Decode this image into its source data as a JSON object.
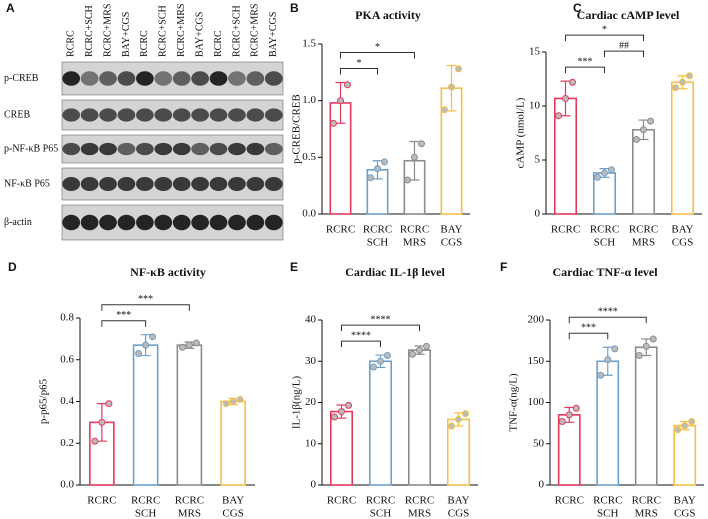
{
  "chart_data": [
    {
      "type": "blot",
      "panel": "A",
      "lanes": [
        "RCRC",
        "RCRC+SCH",
        "RCRC+MRS",
        "BAY+CGS",
        "RCRC",
        "RCRC+SCH",
        "RCRC+MRS",
        "BAY+CGS",
        "RCRC",
        "RCRC+SCH",
        "RCRC+MRS",
        "BAY+CGS"
      ],
      "rows": [
        "p-CREB",
        "CREB",
        "p-NF-κB P65",
        "NF-κB P65",
        "β-actin"
      ]
    },
    {
      "type": "bar",
      "panel": "B",
      "title": "PKA activity",
      "ylabel": "p-CREB/CREB",
      "categories": [
        [
          "RCRC"
        ],
        [
          "RCRC",
          "SCH"
        ],
        [
          "RCRC",
          "MRS"
        ],
        [
          "BAY",
          "CGS"
        ]
      ],
      "values": [
        0.98,
        0.39,
        0.47,
        1.11
      ],
      "errors": [
        0.18,
        0.08,
        0.17,
        0.2
      ],
      "points": [
        [
          0.8,
          1.0,
          1.14
        ],
        [
          0.32,
          0.4,
          0.46
        ],
        [
          0.3,
          0.5,
          0.62
        ],
        [
          0.92,
          1.12,
          1.28
        ]
      ],
      "colors": [
        "#e6395e",
        "#6f9fc8",
        "#8c8c8c",
        "#f5c04a"
      ],
      "ylim": [
        0,
        1.5
      ],
      "yticks": [
        {
          "value": 0,
          "label": "0.0"
        },
        0.5,
        {
          "value": 1,
          "label": "1.0"
        },
        1.5
      ],
      "significance": [
        {
          "from": 0,
          "to": 1,
          "label": "*"
        },
        {
          "from": 0,
          "to": 2,
          "label": "*"
        }
      ]
    },
    {
      "type": "bar",
      "panel": "C",
      "title": "Cardiac cAMP level",
      "ylabel": "cAMP (nmol/L)",
      "categories": [
        [
          "RCRC"
        ],
        [
          "RCRC",
          "SCH"
        ],
        [
          "RCRC",
          "MRS"
        ],
        [
          "BAY",
          "CGS"
        ]
      ],
      "values": [
        10.7,
        3.8,
        7.8,
        12.2
      ],
      "errors": [
        1.6,
        0.4,
        0.9,
        0.6
      ],
      "points": [
        [
          9.1,
          10.7,
          12.2
        ],
        [
          3.4,
          3.8,
          4.1
        ],
        [
          6.9,
          7.8,
          8.6
        ],
        [
          11.7,
          12.2,
          12.8
        ]
      ],
      "colors": [
        "#e6395e",
        "#6f9fc8",
        "#8c8c8c",
        "#f5c04a"
      ],
      "ylim": [
        0,
        15
      ],
      "yticks": [
        0,
        5,
        10,
        15
      ],
      "significance": [
        {
          "from": 0,
          "to": 1,
          "label": "***"
        },
        {
          "from": 1,
          "to": 2,
          "label": "##"
        },
        {
          "from": 0,
          "to": 2,
          "label": "*"
        }
      ]
    },
    {
      "type": "bar",
      "panel": "D",
      "title": "NF-κB activity",
      "ylabel": "p-p65/p65",
      "categories": [
        [
          "RCRC"
        ],
        [
          "RCRC",
          "SCH"
        ],
        [
          "RCRC",
          "MRS"
        ],
        [
          "BAY",
          "CGS"
        ]
      ],
      "values": [
        0.3,
        0.67,
        0.67,
        0.4
      ],
      "errors": [
        0.09,
        0.05,
        0.015,
        0.015
      ],
      "points": [
        [
          0.21,
          0.3,
          0.39
        ],
        [
          0.63,
          0.67,
          0.71
        ],
        [
          0.66,
          0.67,
          0.68
        ],
        [
          0.39,
          0.4,
          0.41
        ]
      ],
      "colors": [
        "#e6395e",
        "#6f9fc8",
        "#8c8c8c",
        "#f5c04a"
      ],
      "ylim": [
        0,
        0.8
      ],
      "yticks": [
        {
          "value": 0,
          "label": "0.0"
        },
        0.2,
        0.4,
        0.6,
        0.8
      ],
      "significance": [
        {
          "from": 0,
          "to": 1,
          "label": "***"
        },
        {
          "from": 0,
          "to": 2,
          "label": "***"
        }
      ]
    },
    {
      "type": "bar",
      "panel": "E",
      "title": "Cardiac IL-1β level",
      "ylabel": "IL-1β(ng/L)",
      "categories": [
        [
          "RCRC"
        ],
        [
          "RCRC",
          "SCH"
        ],
        [
          "RCRC",
          "MRS"
        ],
        [
          "BAY",
          "CGS"
        ]
      ],
      "values": [
        17.8,
        30,
        32.7,
        15.9
      ],
      "errors": [
        1.6,
        1.5,
        1,
        1.6
      ],
      "points": [
        [
          16.5,
          17.8,
          19.3
        ],
        [
          28.6,
          30,
          31.4
        ],
        [
          31.7,
          32.7,
          33.6
        ],
        [
          14.3,
          15.9,
          17.3
        ]
      ],
      "colors": [
        "#e6395e",
        "#6f9fc8",
        "#8c8c8c",
        "#f5c04a"
      ],
      "ylim": [
        0,
        40
      ],
      "yticks": [
        0,
        10,
        20,
        30,
        40
      ],
      "significance": [
        {
          "from": 0,
          "to": 1,
          "label": "****"
        },
        {
          "from": 0,
          "to": 2,
          "label": "****"
        }
      ]
    },
    {
      "type": "bar",
      "panel": "F",
      "title": "Cardiac TNF-α level",
      "ylabel": "TNF-α(ng/L)",
      "categories": [
        [
          "RCRC"
        ],
        [
          "RCRC",
          "SCH"
        ],
        [
          "RCRC",
          "MRS"
        ],
        [
          "BAY",
          "CGS"
        ]
      ],
      "values": [
        85,
        150,
        167,
        72
      ],
      "errors": [
        9,
        17,
        10,
        5
      ],
      "points": [
        [
          77,
          85,
          93
        ],
        [
          133,
          152,
          165
        ],
        [
          157,
          168,
          177
        ],
        [
          67,
          72,
          77
        ]
      ],
      "colors": [
        "#e6395e",
        "#6f9fc8",
        "#8c8c8c",
        "#f5c04a"
      ],
      "ylim": [
        0,
        200
      ],
      "yticks": [
        0,
        50,
        100,
        150,
        200
      ],
      "significance": [
        {
          "from": 0,
          "to": 1,
          "label": "***"
        },
        {
          "from": 0,
          "to": 2,
          "label": "****"
        }
      ]
    }
  ]
}
